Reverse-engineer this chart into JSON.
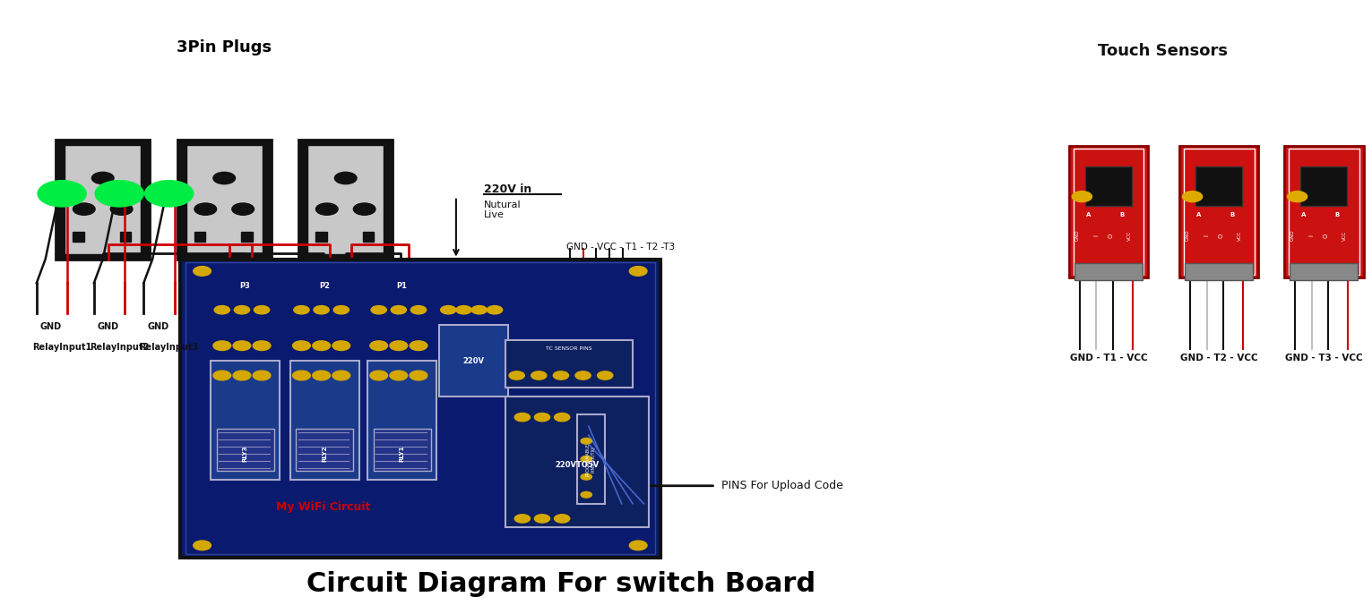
{
  "title": "Circuit Diagram For switch Board",
  "title_fontsize": 22,
  "title_fontweight": "bold",
  "bg_color": "#ffffff",
  "pcb_color": "#0a1a6e",
  "pcb_border_color": "#111111",
  "plug_label": "3Pin Plugs",
  "touch_label": "Touch Sensors",
  "relay_labels": [
    "RelayInput1",
    "RelayInput2",
    "RelayInput3"
  ],
  "touch_pin_labels": [
    "GND - T1 - VCC",
    "GND - T2 - VCC",
    "GND - T3 - VCC"
  ],
  "sensor_label": "GND - VCC - T1 - T2 -T3",
  "power_label": "220V in",
  "neutral_label": "Nutural",
  "live_label": "Live",
  "pins_upload_label": "PINS For Upload Code",
  "wifi_label": "My WiFi Circuit",
  "relay_color": "#1a3a8a",
  "socket_bg": "#c8c8c8",
  "socket_border": "#111111",
  "red_wire": "#cc0000",
  "black_wire": "#111111",
  "green_led": "#00ee44",
  "touch_sensor_red": "#cc1111"
}
